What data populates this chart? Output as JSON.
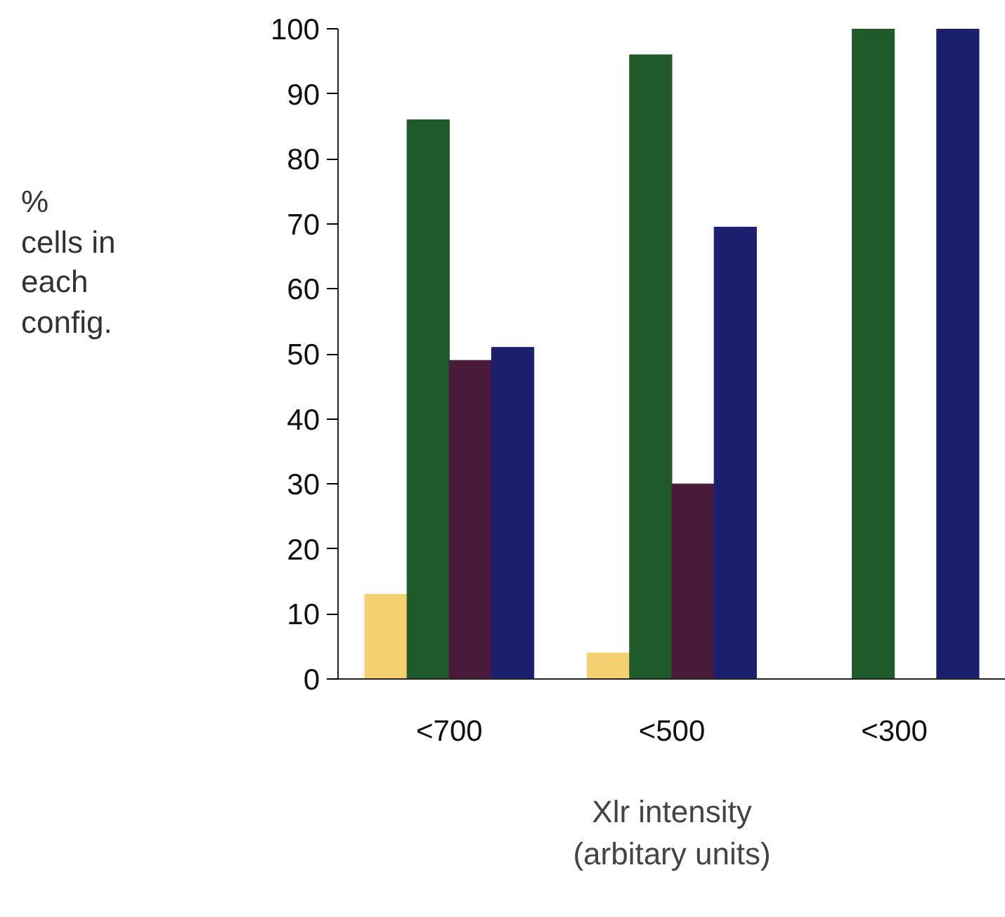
{
  "chart_data": {
    "type": "bar",
    "xlabel": "Xlr intensity\n(arbitary units)",
    "annotations": [
      "%\ncells in\neach\nconfig."
    ],
    "categories": [
      "<700",
      "<500",
      "<300"
    ],
    "series": [
      {
        "color": "#f5d070",
        "values": [
          13,
          4,
          0
        ]
      },
      {
        "color": "#1f5a2a",
        "values": [
          86,
          96,
          100
        ]
      },
      {
        "color": "#4a1a3a",
        "values": [
          49,
          30,
          0
        ]
      },
      {
        "color": "#1a1f6e",
        "values": [
          51,
          69.5,
          100
        ]
      }
    ],
    "ylim": [
      0,
      100
    ],
    "yticks": [
      0,
      10,
      20,
      30,
      40,
      50,
      60,
      70,
      80,
      90,
      100
    ],
    "grid": false
  }
}
